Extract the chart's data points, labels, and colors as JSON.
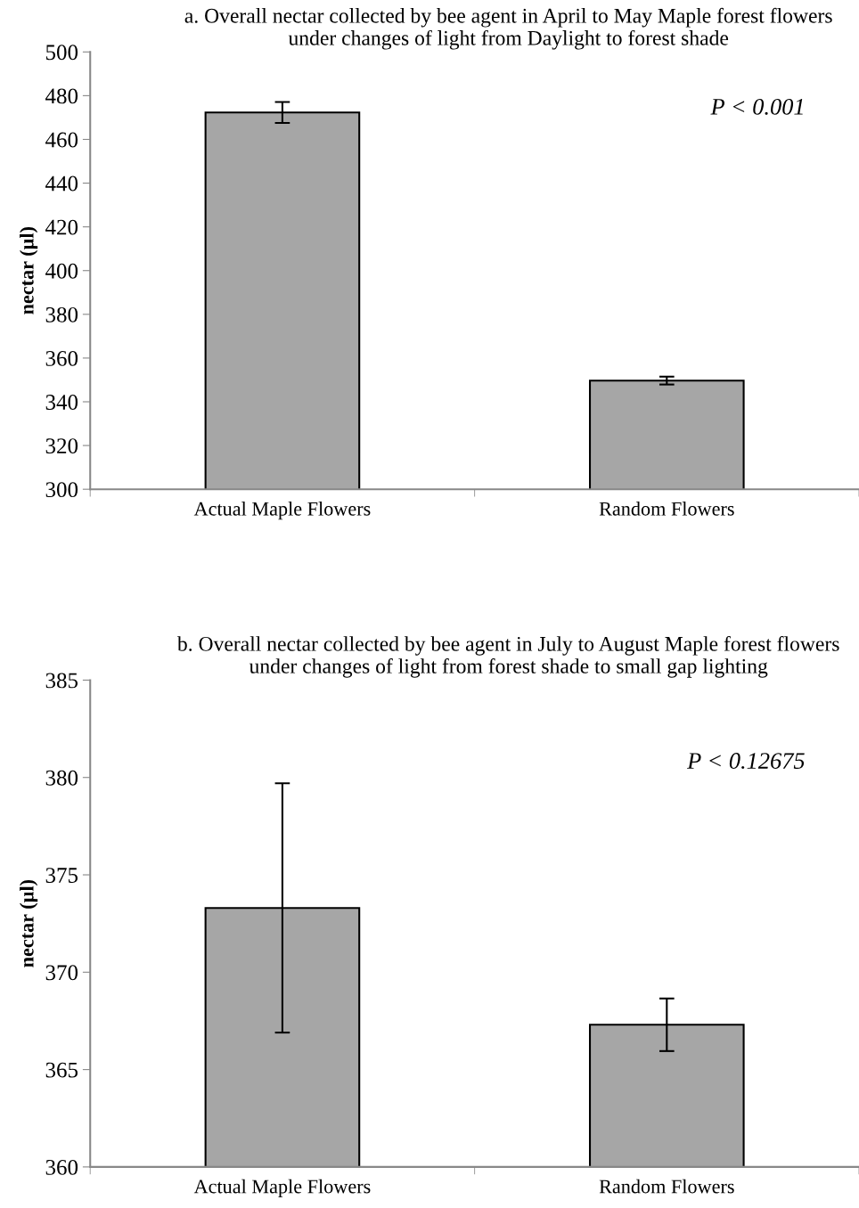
{
  "chart_data": [
    {
      "type": "bar",
      "title": "a. Overall nectar collected by bee agent in April to May Maple forest flowers under changes of light from Daylight to forest shade",
      "ylabel": "nectar (µl)",
      "categories": [
        "Actual Maple Flowers",
        "Random Flowers"
      ],
      "values": [
        472.3,
        349.7
      ],
      "errors": [
        4.8,
        1.8
      ],
      "color": "#a6a6a6",
      "ylim": [
        300,
        500
      ],
      "yticks": [
        300,
        320,
        340,
        360,
        380,
        400,
        420,
        440,
        460,
        480,
        500
      ],
      "grid": false,
      "annotations": [
        "P < 0.001"
      ]
    },
    {
      "type": "bar",
      "title": "b. Overall nectar collected by bee agent in July to August Maple forest flowers under changes of light from forest shade to small gap lighting",
      "ylabel": "nectar (µl)",
      "categories": [
        "Actual Maple Flowers",
        "Random Flowers"
      ],
      "values": [
        373.3,
        367.3
      ],
      "errors": [
        6.4,
        1.35
      ],
      "color": "#a6a6a6",
      "ylim": [
        360,
        385
      ],
      "yticks": [
        360,
        365,
        370,
        375,
        380,
        385
      ],
      "grid": false,
      "annotations": [
        "P < 0.12675"
      ]
    }
  ]
}
